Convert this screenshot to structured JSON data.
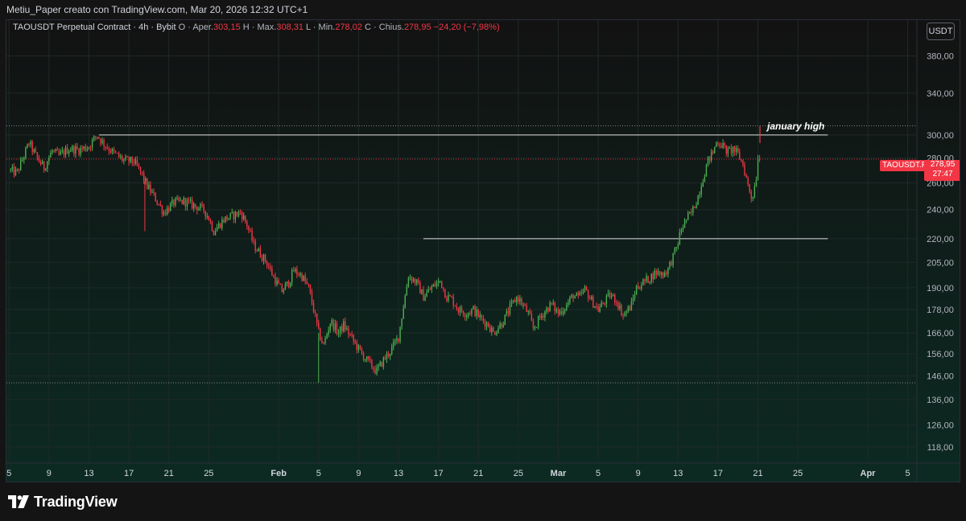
{
  "header": {
    "caption": "Metiu_Paper creato con TradingView.com, Mar 20, 2026 12:32 UTC+1"
  },
  "legend": {
    "symbol_line": "TAOUSDT Perpetual Contract · 4h · Bybit",
    "open_label": "O · Aper.",
    "open_value": "303,15",
    "high_label": "H · Max.",
    "high_value": "308,31",
    "low_label": "L · Min.",
    "low_value": "278,02",
    "close_label": "C · Chius.",
    "close_value": "278,95",
    "change_value": "−24,20 (−7,98%)"
  },
  "currency_button": "USDT",
  "price_badge": {
    "symbol": "TAOUSDT.P",
    "price": "278,95",
    "countdown": "27:47"
  },
  "branding": {
    "logo_text": "TradingView"
  },
  "colors": {
    "up": "#26a69a",
    "up_bright": "#4caf50",
    "down": "#f23645",
    "grid": "#1f2a26",
    "text": "#d1d4dc",
    "hline": "#e0e0e0"
  },
  "chart_data": {
    "type": "candlestick",
    "timeframe": "4h",
    "y_scale": "log",
    "ylim": [
      113,
      410
    ],
    "y_ticks": [
      {
        "value": 380,
        "label": "380,00"
      },
      {
        "value": 340,
        "label": "340,00"
      },
      {
        "value": 300,
        "label": "300,00"
      },
      {
        "value": 280,
        "label": "280,00"
      },
      {
        "value": 260,
        "label": "260,00"
      },
      {
        "value": 240,
        "label": "240,00"
      },
      {
        "value": 220,
        "label": "220,00"
      },
      {
        "value": 205,
        "label": "205,00"
      },
      {
        "value": 190,
        "label": "190,00"
      },
      {
        "value": 178,
        "label": "178,00"
      },
      {
        "value": 166,
        "label": "166,00"
      },
      {
        "value": 156,
        "label": "156,00"
      },
      {
        "value": 146,
        "label": "146,00"
      },
      {
        "value": 136,
        "label": "136,00"
      },
      {
        "value": 126,
        "label": "126,00"
      },
      {
        "value": 118,
        "label": "118,00"
      }
    ],
    "x_ticks": [
      {
        "day": 5,
        "label": "5"
      },
      {
        "day": 9,
        "label": "9"
      },
      {
        "day": 13,
        "label": "13"
      },
      {
        "day": 17,
        "label": "17"
      },
      {
        "day": 21,
        "label": "21"
      },
      {
        "day": 25,
        "label": "25"
      },
      {
        "day": 32,
        "label": "Feb",
        "bold": true
      },
      {
        "day": 36,
        "label": "5"
      },
      {
        "day": 40,
        "label": "9"
      },
      {
        "day": 44,
        "label": "13"
      },
      {
        "day": 48,
        "label": "17"
      },
      {
        "day": 52,
        "label": "21"
      },
      {
        "day": 56,
        "label": "25"
      },
      {
        "day": 60,
        "label": "Mar",
        "bold": true
      },
      {
        "day": 64,
        "label": "5"
      },
      {
        "day": 68,
        "label": "9"
      },
      {
        "day": 72,
        "label": "13"
      },
      {
        "day": 76,
        "label": "17"
      },
      {
        "day": 80,
        "label": "21"
      },
      {
        "day": 84,
        "label": "25"
      },
      {
        "day": 91,
        "label": "Apr",
        "bold": true
      },
      {
        "day": 95,
        "label": "5"
      }
    ],
    "x_domain_days": [
      4.9,
      96.0
    ],
    "anchors": [
      [
        5.0,
        270
      ],
      [
        5.8,
        268
      ],
      [
        6.5,
        282
      ],
      [
        7.0,
        293
      ],
      [
        7.8,
        280
      ],
      [
        8.5,
        272
      ],
      [
        9.3,
        286
      ],
      [
        10.0,
        282
      ],
      [
        11.0,
        288
      ],
      [
        12.0,
        287
      ],
      [
        13.0,
        290
      ],
      [
        13.8,
        300
      ],
      [
        14.5,
        292
      ],
      [
        15.5,
        284
      ],
      [
        16.5,
        278
      ],
      [
        17.5,
        277
      ],
      [
        18.2,
        268
      ],
      [
        18.8,
        258
      ],
      [
        19.5,
        250
      ],
      [
        20.5,
        238
      ],
      [
        21.5,
        245
      ],
      [
        22.5,
        246
      ],
      [
        23.5,
        243
      ],
      [
        24.5,
        240
      ],
      [
        25.0,
        234
      ],
      [
        25.5,
        225
      ],
      [
        26.5,
        233
      ],
      [
        27.5,
        236
      ],
      [
        28.2,
        238
      ],
      [
        28.8,
        230
      ],
      [
        29.5,
        216
      ],
      [
        30.2,
        210
      ],
      [
        30.8,
        205
      ],
      [
        31.5,
        196
      ],
      [
        32.3,
        188
      ],
      [
        33.0,
        193
      ],
      [
        33.5,
        200
      ],
      [
        34.3,
        197
      ],
      [
        35.0,
        190
      ],
      [
        35.5,
        178
      ],
      [
        36.0,
        166
      ],
      [
        36.5,
        160
      ],
      [
        37.2,
        172
      ],
      [
        38.0,
        166
      ],
      [
        38.5,
        170
      ],
      [
        39.5,
        162
      ],
      [
        40.3,
        156
      ],
      [
        41.0,
        152
      ],
      [
        41.8,
        148
      ],
      [
        42.5,
        153
      ],
      [
        43.3,
        158
      ],
      [
        44.0,
        164
      ],
      [
        44.5,
        180
      ],
      [
        45.0,
        197
      ],
      [
        45.8,
        193
      ],
      [
        46.5,
        185
      ],
      [
        47.3,
        190
      ],
      [
        48.2,
        194
      ],
      [
        48.8,
        185
      ],
      [
        49.3,
        184
      ],
      [
        50.0,
        178
      ],
      [
        50.8,
        176
      ],
      [
        51.5,
        178
      ],
      [
        52.3,
        173
      ],
      [
        53.0,
        170
      ],
      [
        53.5,
        166
      ],
      [
        54.0,
        169
      ],
      [
        54.5,
        172
      ],
      [
        55.3,
        180
      ],
      [
        55.9,
        185
      ],
      [
        56.5,
        180
      ],
      [
        57.0,
        176
      ],
      [
        57.5,
        168
      ],
      [
        58.2,
        174
      ],
      [
        58.8,
        178
      ],
      [
        59.3,
        181
      ],
      [
        60.0,
        176
      ],
      [
        60.8,
        180
      ],
      [
        61.5,
        186
      ],
      [
        62.0,
        184
      ],
      [
        62.7,
        189
      ],
      [
        63.3,
        183
      ],
      [
        64.0,
        178
      ],
      [
        64.6,
        182
      ],
      [
        65.2,
        186
      ],
      [
        65.8,
        183
      ],
      [
        66.5,
        175
      ],
      [
        67.3,
        180
      ],
      [
        67.8,
        190
      ],
      [
        68.5,
        193
      ],
      [
        69.2,
        196
      ],
      [
        69.8,
        199
      ],
      [
        70.5,
        198
      ],
      [
        71.0,
        201
      ],
      [
        71.4,
        207
      ],
      [
        71.9,
        215
      ],
      [
        72.3,
        226
      ],
      [
        72.8,
        233
      ],
      [
        73.4,
        238
      ],
      [
        74.0,
        250
      ],
      [
        74.5,
        264
      ],
      [
        75.0,
        278
      ],
      [
        75.5,
        285
      ],
      [
        75.9,
        295
      ],
      [
        76.4,
        291
      ],
      [
        77.0,
        285
      ],
      [
        77.5,
        288
      ],
      [
        78.0,
        283
      ],
      [
        78.5,
        275
      ],
      [
        79.0,
        258
      ],
      [
        79.4,
        248
      ],
      [
        79.8,
        262
      ],
      [
        80.0,
        282
      ],
      [
        80.15,
        300
      ],
      [
        80.3,
        278.95
      ]
    ],
    "spikes": [
      {
        "day": 18.6,
        "low": 225
      },
      {
        "day": 36.0,
        "low": 143
      },
      {
        "day": 80.2,
        "high": 308.31
      }
    ],
    "horizontal_lines": [
      {
        "from_day": 14.0,
        "to_day": 87.0,
        "price": 300,
        "label": "january high"
      },
      {
        "from_day": 46.5,
        "to_day": 87.0,
        "price": 220,
        "label": ""
      }
    ],
    "dotted_lines": [
      {
        "price": 308.31,
        "color": "#9aa3a0"
      },
      {
        "price": 278.95,
        "color": "#f23645"
      },
      {
        "price": 143,
        "color": "#9aa3a0"
      }
    ],
    "last_price": 278.95
  }
}
